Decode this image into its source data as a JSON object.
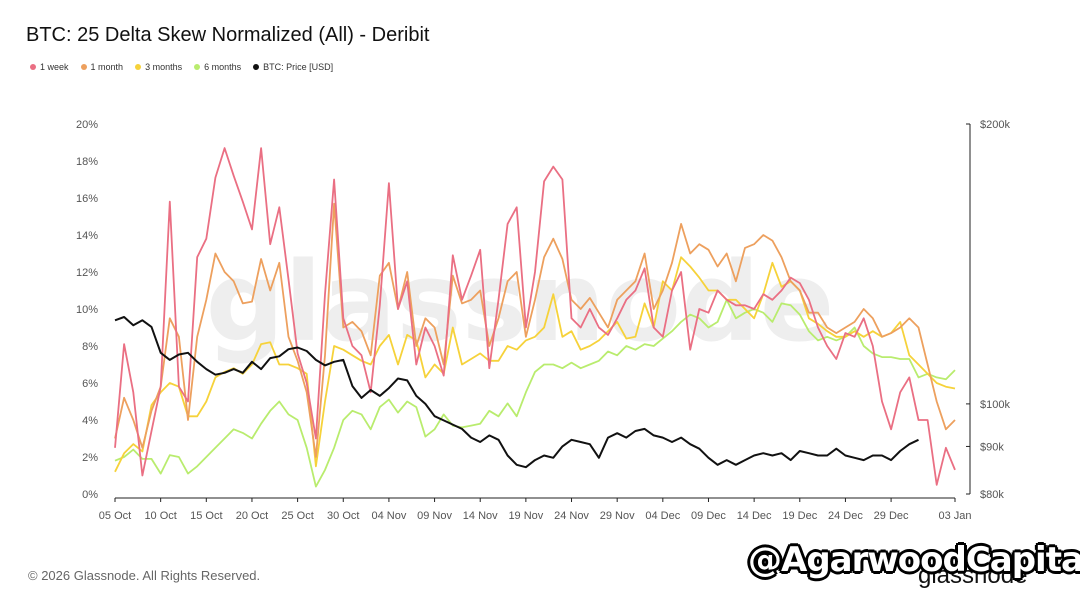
{
  "title": "BTC: 25 Delta Skew Normalized (All) - Deribit",
  "footer": "© 2026 Glassnode. All Rights Reserved.",
  "overlay_text": "@AgarwoodCapital",
  "brand_logo": "glassnode",
  "background_logo": "glassnode",
  "colors": {
    "1w": "#ea6f83",
    "1m": "#eda05e",
    "3m": "#f6d23a",
    "6m": "#b9ec6e",
    "price": "#111111"
  },
  "legend": [
    {
      "label": "1 week",
      "color": "#ea6f83"
    },
    {
      "label": "1 month",
      "color": "#eda05e"
    },
    {
      "label": "3 months",
      "color": "#f6d23a"
    },
    {
      "label": "6 months",
      "color": "#b9ec6e"
    },
    {
      "label": "BTC: Price [USD]",
      "color": "#111111"
    }
  ],
  "chart_data": {
    "type": "line",
    "title": "BTC: 25 Delta Skew Normalized (All) - Deribit",
    "x_tick_labels": [
      "05 Oct",
      "10 Oct",
      "15 Oct",
      "20 Oct",
      "25 Oct",
      "30 Oct",
      "04 Nov",
      "09 Nov",
      "14 Nov",
      "19 Nov",
      "24 Nov",
      "29 Nov",
      "04 Dec",
      "09 Dec",
      "14 Dec",
      "19 Dec",
      "24 Dec",
      "29 Dec",
      "03 Jan"
    ],
    "y_left": {
      "ticks": [
        0,
        2,
        4,
        6,
        8,
        10,
        12,
        14,
        16,
        18,
        20
      ],
      "tick_labels": [
        "0%",
        "2%",
        "4%",
        "6%",
        "8%",
        "10%",
        "12%",
        "14%",
        "16%",
        "18%",
        "20%"
      ],
      "ylim": [
        0,
        20
      ]
    },
    "y_right": {
      "tick_values": [
        80000,
        90000,
        100000,
        200000
      ],
      "tick_labels": [
        "$80k",
        "$90k",
        "$100k",
        "$200k"
      ],
      "scale": "log",
      "ylim": [
        80000,
        200000
      ]
    },
    "x_start_day_index": 0,
    "series": [
      {
        "name": "1 week",
        "key": "1w",
        "axis": "left",
        "values": [
          2.5,
          8.1,
          5.5,
          1.0,
          3.4,
          5.8,
          15.8,
          5.8,
          5.0,
          12.8,
          13.8,
          17.1,
          18.7,
          17.2,
          15.8,
          14.3,
          18.7,
          13.5,
          15.5,
          11.6,
          7.6,
          6.0,
          3.0,
          10.8,
          17.0,
          9.5,
          8.0,
          7.5,
          5.5,
          10.2,
          16.8,
          10.0,
          11.5,
          7.0,
          9.0,
          8.0,
          6.4,
          12.9,
          10.5,
          11.8,
          13.2,
          6.8,
          10.5,
          14.6,
          15.5,
          9.0,
          12.0,
          16.9,
          17.7,
          17.0,
          9.5,
          9.0,
          10.0,
          9.0,
          8.6,
          9.5,
          10.5,
          11.0,
          12.2,
          9.0,
          8.5,
          11.0,
          12.0,
          7.8,
          10.0,
          9.8,
          11.0,
          10.5,
          10.2,
          10.2,
          10.0,
          10.8,
          10.5,
          11.0,
          11.7,
          11.4,
          10.5,
          9.0,
          8.0,
          7.3,
          8.7,
          8.5,
          9.5,
          8.0,
          5.0,
          3.5,
          5.5,
          6.3,
          4.0,
          4.0,
          0.5,
          2.5,
          1.3
        ]
      },
      {
        "name": "1 month",
        "key": "1m",
        "axis": "left",
        "values": [
          3.0,
          5.2,
          4.0,
          2.5,
          4.5,
          5.8,
          9.5,
          8.5,
          4.0,
          8.5,
          10.5,
          13.0,
          12.0,
          11.5,
          10.3,
          10.4,
          12.7,
          11.0,
          12.5,
          8.5,
          7.2,
          5.5,
          2.0,
          7.5,
          15.7,
          9.0,
          9.3,
          8.8,
          7.5,
          11.8,
          12.5,
          10.0,
          12.0,
          8.0,
          9.5,
          9.0,
          7.0,
          11.8,
          10.3,
          10.5,
          11.0,
          8.0,
          9.5,
          11.5,
          12.0,
          8.5,
          10.5,
          12.8,
          13.8,
          12.7,
          10.5,
          10.0,
          10.6,
          9.8,
          9.0,
          10.5,
          11.0,
          11.5,
          13.0,
          10.0,
          11.0,
          12.5,
          14.6,
          13.0,
          13.5,
          13.2,
          12.3,
          13.0,
          11.5,
          13.3,
          13.5,
          14.0,
          13.7,
          12.8,
          11.5,
          11.0,
          9.8,
          9.8,
          9.0,
          8.7,
          9.0,
          9.3,
          10.0,
          9.5,
          8.5,
          8.7,
          9.0,
          9.5,
          9.0,
          7.0,
          5.0,
          3.5,
          4.0
        ]
      },
      {
        "name": "3 months",
        "key": "3m",
        "axis": "left",
        "values": [
          1.2,
          2.2,
          2.7,
          2.3,
          4.8,
          5.5,
          6.0,
          5.8,
          4.2,
          4.2,
          5.0,
          6.3,
          6.6,
          6.8,
          6.5,
          7.0,
          8.1,
          8.2,
          7.0,
          7.0,
          6.8,
          6.5,
          1.5,
          5.0,
          8.0,
          7.8,
          7.5,
          7.2,
          7.0,
          8.0,
          8.6,
          7.0,
          8.6,
          8.3,
          6.3,
          7.0,
          6.5,
          9.0,
          7.0,
          7.3,
          7.6,
          7.2,
          7.2,
          8.0,
          7.8,
          8.3,
          8.5,
          9.0,
          10.8,
          8.5,
          8.8,
          7.8,
          8.0,
          8.3,
          8.8,
          9.3,
          8.4,
          8.5,
          10.3,
          9.0,
          11.5,
          11.0,
          12.8,
          12.3,
          11.7,
          11.0,
          11.0,
          10.5,
          10.5,
          10.0,
          9.5,
          10.8,
          12.5,
          11.2,
          11.5,
          11.0,
          9.5,
          9.2,
          8.8,
          8.5,
          8.5,
          8.8,
          8.5,
          8.8,
          8.5,
          8.7,
          9.3,
          7.5,
          7.0,
          6.5,
          6.0,
          5.8,
          5.7
        ]
      },
      {
        "name": "6 months",
        "key": "6m",
        "axis": "left",
        "values": [
          1.8,
          2.0,
          2.4,
          1.9,
          1.9,
          1.1,
          2.1,
          2.0,
          1.1,
          1.5,
          2.0,
          2.5,
          3.0,
          3.5,
          3.3,
          3.0,
          3.8,
          4.5,
          5.0,
          4.3,
          4.0,
          2.5,
          0.4,
          1.3,
          2.5,
          4.0,
          4.5,
          4.3,
          3.5,
          4.7,
          5.1,
          4.4,
          5.0,
          4.7,
          3.1,
          3.5,
          4.3,
          3.7,
          3.6,
          3.7,
          3.8,
          4.5,
          4.2,
          4.9,
          4.2,
          5.5,
          6.6,
          7.0,
          7.0,
          6.8,
          7.1,
          6.8,
          7.0,
          7.2,
          7.7,
          7.5,
          8.0,
          7.8,
          8.1,
          8.0,
          8.4,
          8.8,
          9.3,
          9.7,
          9.5,
          9.0,
          9.3,
          10.5,
          9.5,
          9.8,
          10.0,
          9.8,
          9.3,
          10.3,
          10.2,
          9.7,
          8.8,
          8.3,
          8.5,
          8.3,
          8.5,
          9.0,
          8.0,
          7.6,
          7.4,
          7.4,
          7.3,
          7.3,
          6.3,
          6.5,
          6.3,
          6.2,
          6.7
        ]
      },
      {
        "name": "BTC: Price [USD]",
        "key": "price",
        "axis": "right",
        "values": [
          123000,
          124000,
          121500,
          123000,
          121000,
          113500,
          111500,
          113000,
          113500,
          111000,
          109000,
          107500,
          108000,
          109000,
          108000,
          111000,
          109000,
          112000,
          112500,
          114500,
          115000,
          114000,
          111500,
          110000,
          111000,
          111500,
          104500,
          101500,
          103500,
          102000,
          104000,
          106500,
          106000,
          102000,
          100000,
          97000,
          96000,
          95000,
          94000,
          92000,
          91000,
          92500,
          91500,
          88000,
          86000,
          85500,
          87000,
          88000,
          87500,
          90000,
          91500,
          91000,
          90500,
          87500,
          92000,
          93000,
          92000,
          93500,
          94000,
          92500,
          92000,
          91000,
          92000,
          90500,
          89500,
          87500,
          86000,
          87000,
          86000,
          87000,
          88000,
          88500,
          88000,
          88500,
          87000,
          89000,
          88500,
          88000,
          88000,
          89500,
          88000,
          87500,
          87000,
          88000,
          88000,
          87000,
          89000,
          90500,
          91500
        ]
      }
    ],
    "grid": false,
    "legend_position": "top-left"
  }
}
